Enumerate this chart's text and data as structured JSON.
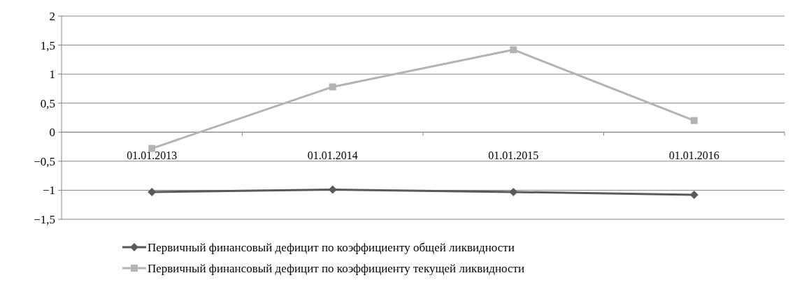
{
  "chart_data": {
    "type": "line",
    "categories": [
      "01.01.2013",
      "01.01.2014",
      "01.01.2015",
      "01.01.2016"
    ],
    "series": [
      {
        "name": "Первичный финансовый дефицит по коэффициенту общей ликвидности",
        "color": "#595959",
        "marker": "diamond",
        "values": [
          -1.03,
          -0.99,
          -1.03,
          -1.08
        ]
      },
      {
        "name": "Первичный финансовый дефицит по коэффициенту текущей ликвидности",
        "color": "#b3b3b3",
        "marker": "square",
        "values": [
          -0.28,
          0.78,
          1.42,
          0.2
        ]
      }
    ],
    "ylim": [
      -1.5,
      2
    ],
    "yticks": [
      {
        "value": -1.5,
        "label": "−1,5"
      },
      {
        "value": -1,
        "label": "−1"
      },
      {
        "value": -0.5,
        "label": "−0,5"
      },
      0,
      {
        "value": 0.5,
        "label": "0,5"
      },
      1,
      {
        "value": 1.5,
        "label": "1,5"
      },
      2
    ],
    "grid": "y",
    "legend": "bottom"
  }
}
